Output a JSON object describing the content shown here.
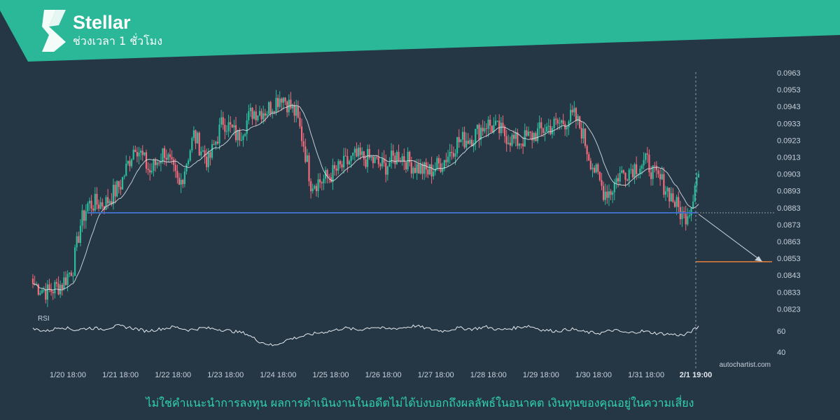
{
  "header": {
    "title": "Stellar",
    "subtitle": "ช่วงเวลา 1 ชั่วโมง"
  },
  "watermark": "autochartist.com",
  "disclaimer": "ไม่ใช่คำแนะนำการลงทุน ผลการดำเนินงานในอดีตไม่ได้บ่งบอกถึงผลลัพธ์ในอนาคต เงินทุนของคุณอยู่ในความเสี่ยง",
  "colors": {
    "background": "#253645",
    "header": "#2ab898",
    "bull": "#2bbd9c",
    "bear": "#f26b7a",
    "support": "#3e6ec7",
    "target": "#e8813e",
    "text": "#c6d0d9",
    "disclaimer": "#2fd3b2"
  },
  "chart_data": [
    {
      "type": "candlestick",
      "y_ticks": [
        "0.0963",
        "0.0953",
        "0.0943",
        "0.0933",
        "0.0923",
        "0.0913",
        "0.0903",
        "0.0893",
        "0.0883",
        "0.0873",
        "0.0863",
        "0.0853",
        "0.0843",
        "0.0833",
        "0.0823"
      ],
      "x_ticks": [
        "1/20 18:00",
        "1/21 18:00",
        "1/22 18:00",
        "1/23 18:00",
        "1/24 18:00",
        "1/25 18:00",
        "1/26 18:00",
        "1/27 18:00",
        "1/28 18:00",
        "1/29 18:00",
        "1/30 18:00",
        "1/31 18:00"
      ],
      "current_time_label": "2/1 19:00",
      "ylim": [
        0.0817,
        0.0966
      ],
      "price_path": [
        [
          0,
          0.0838
        ],
        [
          8,
          0.0833
        ],
        [
          16,
          0.0838
        ],
        [
          22,
          0.0848
        ],
        [
          26,
          0.0873
        ],
        [
          30,
          0.0885
        ],
        [
          40,
          0.0886
        ],
        [
          48,
          0.0897
        ],
        [
          56,
          0.0921
        ],
        [
          64,
          0.0904
        ],
        [
          72,
          0.0917
        ],
        [
          80,
          0.0895
        ],
        [
          88,
          0.0926
        ],
        [
          96,
          0.091
        ],
        [
          104,
          0.0935
        ],
        [
          112,
          0.0925
        ],
        [
          120,
          0.094
        ],
        [
          128,
          0.0941
        ],
        [
          136,
          0.095
        ],
        [
          144,
          0.0938
        ],
        [
          148,
          0.0921
        ],
        [
          152,
          0.0898
        ],
        [
          158,
          0.0899
        ],
        [
          166,
          0.0905
        ],
        [
          176,
          0.0913
        ],
        [
          184,
          0.0912
        ],
        [
          192,
          0.0907
        ],
        [
          200,
          0.0915
        ],
        [
          208,
          0.0908
        ],
        [
          216,
          0.0904
        ],
        [
          224,
          0.091
        ],
        [
          232,
          0.0922
        ],
        [
          240,
          0.0925
        ],
        [
          248,
          0.0933
        ],
        [
          256,
          0.0928
        ],
        [
          264,
          0.0922
        ],
        [
          272,
          0.0925
        ],
        [
          280,
          0.093
        ],
        [
          288,
          0.0933
        ],
        [
          296,
          0.0937
        ],
        [
          300,
          0.0929
        ],
        [
          304,
          0.0914
        ],
        [
          308,
          0.0903
        ],
        [
          312,
          0.0893
        ],
        [
          316,
          0.0893
        ],
        [
          320,
          0.0902
        ],
        [
          328,
          0.0907
        ],
        [
          336,
          0.091
        ],
        [
          340,
          0.0902
        ],
        [
          344,
          0.0898
        ],
        [
          348,
          0.0892
        ],
        [
          352,
          0.0884
        ],
        [
          356,
          0.0877
        ],
        [
          360,
          0.0885
        ],
        [
          362,
          0.0899
        ],
        [
          364,
          0.0903
        ]
      ],
      "moving_average": "light-gray line",
      "support_level": 0.088,
      "target_level": 0.0851,
      "projection_to": 0.0851,
      "rsi": {
        "label": "RSI",
        "ticks": [
          "60",
          "40"
        ],
        "values": [
          62,
          60,
          64,
          61,
          63,
          62,
          65,
          63,
          60,
          62,
          64,
          61,
          63,
          62,
          60,
          58,
          50,
          46,
          52,
          55,
          58,
          60,
          63,
          61,
          64,
          62,
          63,
          65,
          62,
          60,
          63,
          62,
          64,
          61,
          63,
          65,
          61,
          60,
          62,
          59,
          58,
          61,
          58,
          60,
          58,
          57,
          56,
          64
        ]
      }
    }
  ]
}
